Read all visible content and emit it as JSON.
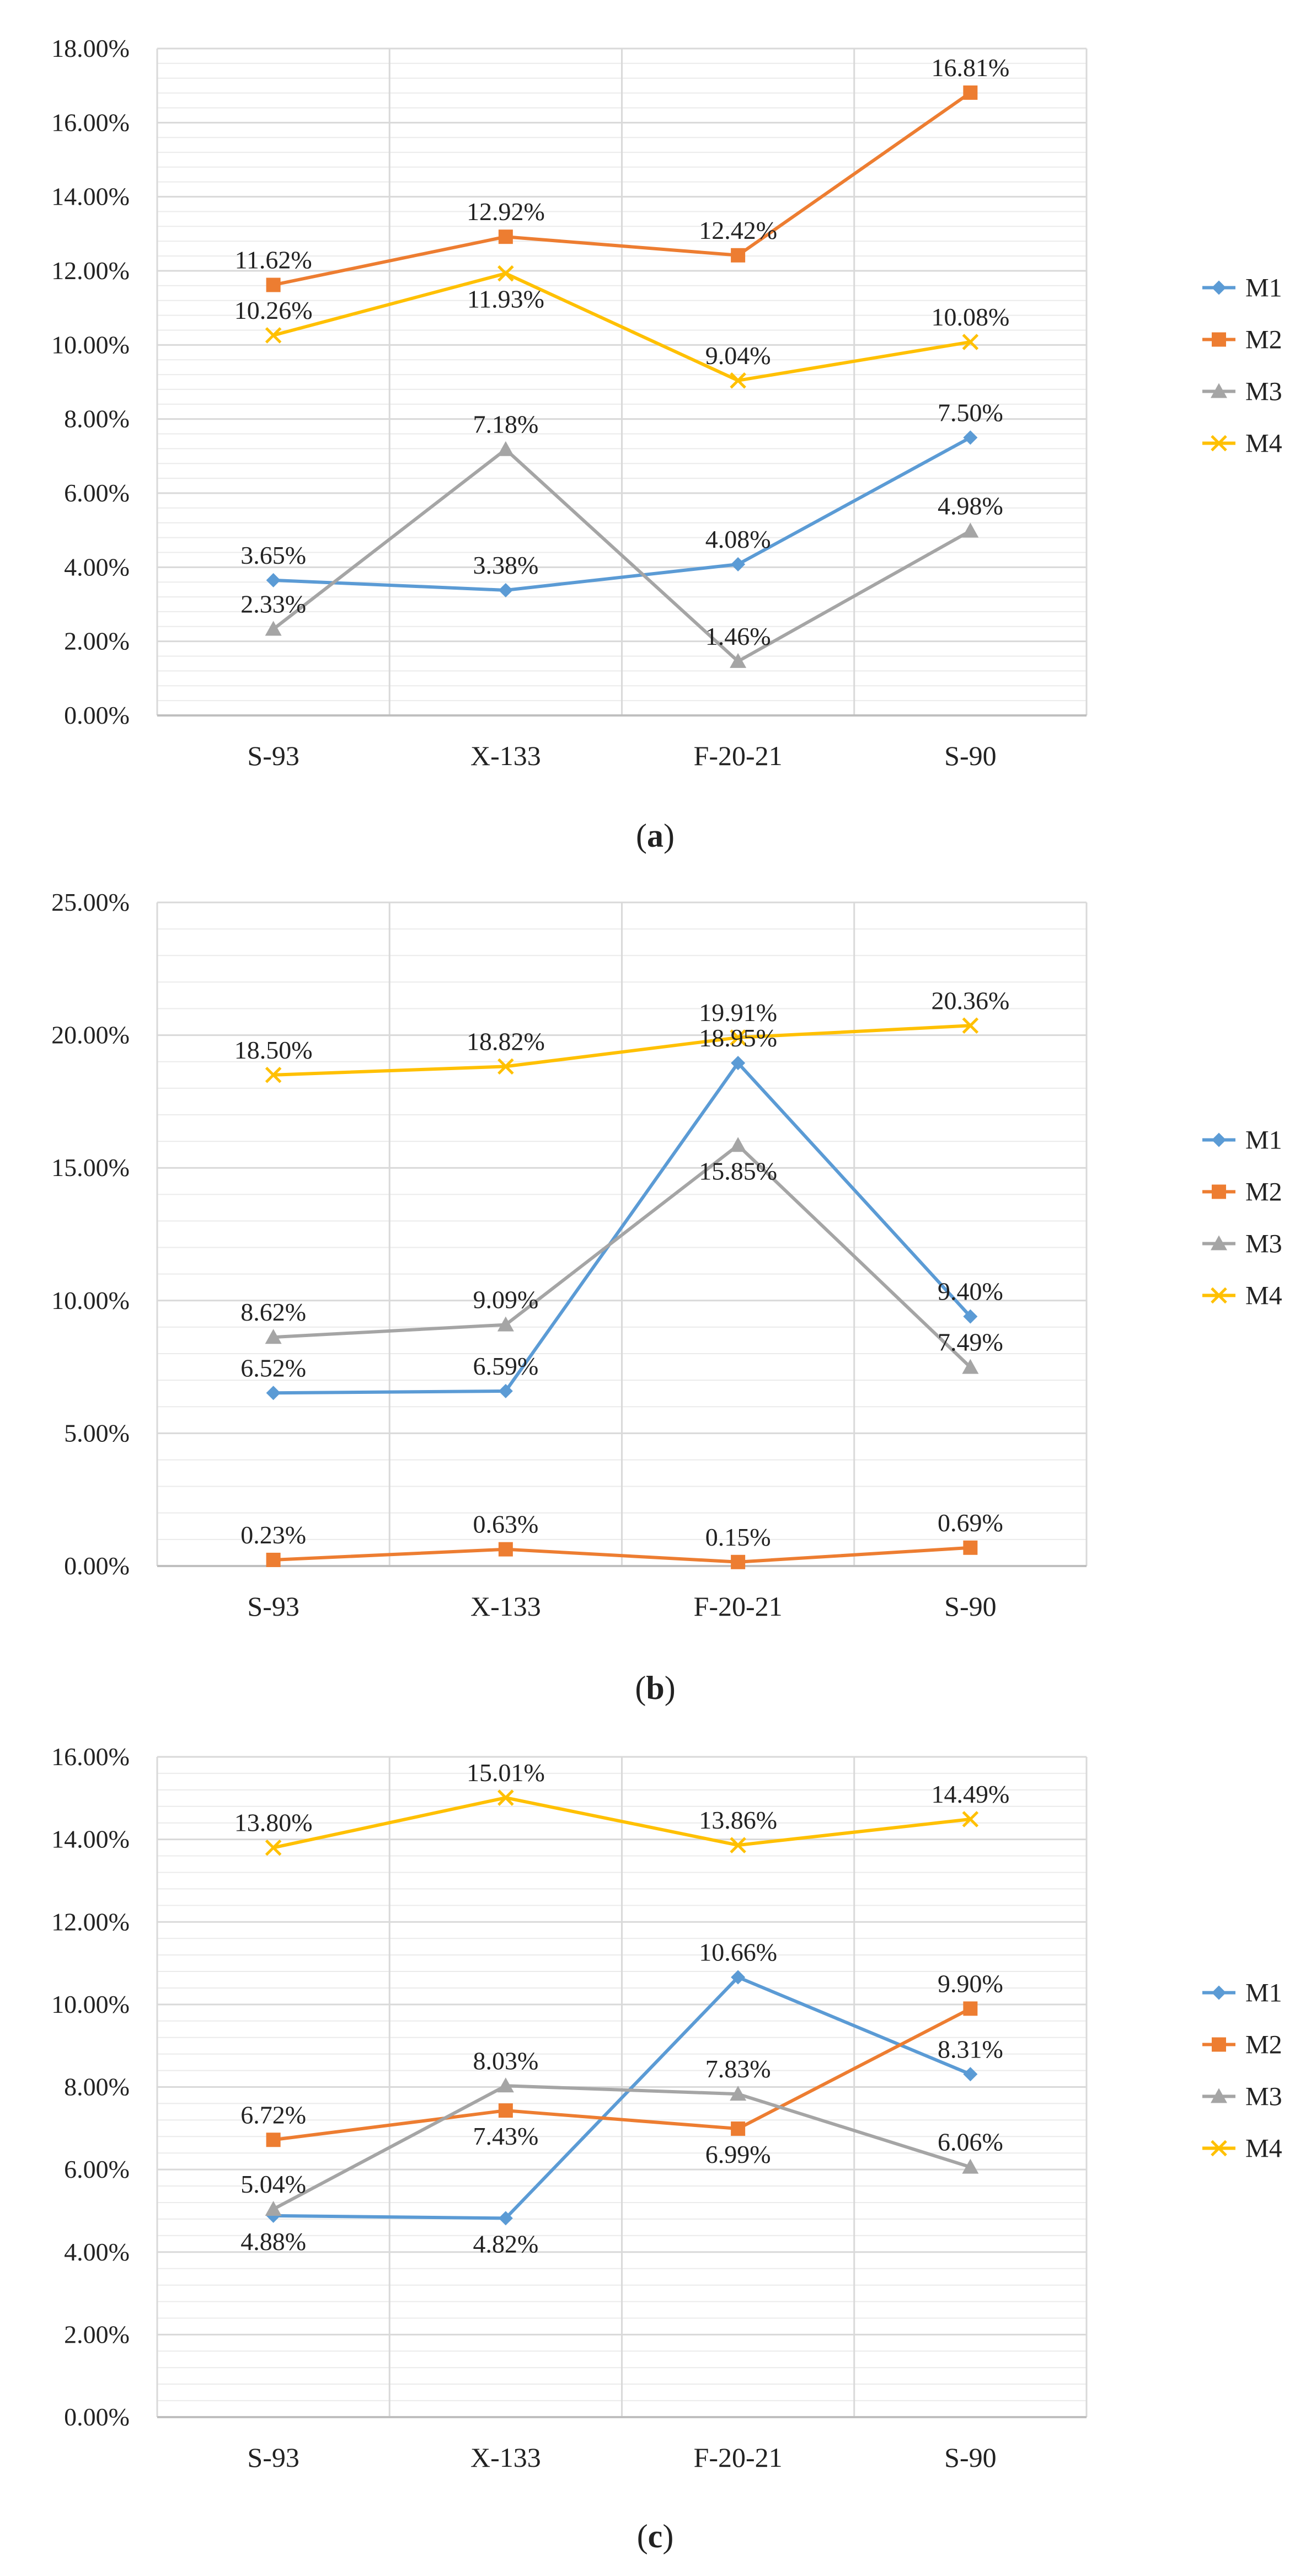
{
  "colors": {
    "M1": "#5B9BD5",
    "M2": "#ED7D31",
    "M3": "#A5A5A5",
    "M4": "#FFC000",
    "grid": "#d9d9d9",
    "axis": "#bfbfbf",
    "text": "#222222"
  },
  "chart_data": [
    {
      "type": "line",
      "panel_label": "a",
      "categories": [
        "S-93",
        "X-133",
        "F-20-21",
        "S-90"
      ],
      "ylim": [
        0,
        18
      ],
      "ytick_step": 2,
      "ytick_labels": [
        "0.00%",
        "2.00%",
        "4.00%",
        "6.00%",
        "8.00%",
        "10.00%",
        "12.00%",
        "14.00%",
        "16.00%",
        "18.00%"
      ],
      "legend_position": "right",
      "series": [
        {
          "name": "M1",
          "values": [
            3.65,
            3.38,
            4.08,
            7.5
          ],
          "labels": [
            "3.65%",
            "3.38%",
            "4.08%",
            "7.50%"
          ],
          "label_pos": [
            "above",
            "above",
            "above",
            "above"
          ]
        },
        {
          "name": "M2",
          "values": [
            11.62,
            12.92,
            12.42,
            16.81
          ],
          "labels": [
            "11.62%",
            "12.92%",
            "12.42%",
            "16.81%"
          ],
          "label_pos": [
            "above",
            "above",
            "above",
            "above"
          ]
        },
        {
          "name": "M3",
          "values": [
            2.33,
            7.18,
            1.46,
            4.98
          ],
          "labels": [
            "2.33%",
            "7.18%",
            "1.46%",
            "4.98%"
          ],
          "label_pos": [
            "above",
            "above",
            "above",
            "above"
          ]
        },
        {
          "name": "M4",
          "values": [
            10.26,
            11.93,
            9.04,
            10.08
          ],
          "labels": [
            "10.26%",
            "11.93%",
            "9.04%",
            "10.08%"
          ],
          "label_pos": [
            "above",
            "below",
            "above",
            "above"
          ]
        }
      ]
    },
    {
      "type": "line",
      "panel_label": "b",
      "categories": [
        "S-93",
        "X-133",
        "F-20-21",
        "S-90"
      ],
      "ylim": [
        0,
        25
      ],
      "ytick_step": 5,
      "ytick_labels": [
        "0.00%",
        "5.00%",
        "10.00%",
        "15.00%",
        "20.00%",
        "25.00%"
      ],
      "legend_position": "right",
      "series": [
        {
          "name": "M1",
          "values": [
            6.52,
            6.59,
            18.95,
            9.4
          ],
          "labels": [
            "6.52%",
            "6.59%",
            "18.95%",
            "9.40%"
          ],
          "label_pos": [
            "above",
            "above",
            "above",
            "above"
          ]
        },
        {
          "name": "M2",
          "values": [
            0.23,
            0.63,
            0.15,
            0.69
          ],
          "labels": [
            "0.23%",
            "0.63%",
            "0.15%",
            "0.69%"
          ],
          "label_pos": [
            "above",
            "above",
            "above",
            "above"
          ]
        },
        {
          "name": "M3",
          "values": [
            8.62,
            9.09,
            15.85,
            7.49
          ],
          "labels": [
            "8.62%",
            "9.09%",
            "15.85%",
            "7.49%"
          ],
          "label_pos": [
            "above",
            "above",
            "below",
            "above"
          ]
        },
        {
          "name": "M4",
          "values": [
            18.5,
            18.82,
            19.91,
            20.36
          ],
          "labels": [
            "18.50%",
            "18.82%",
            "19.91%",
            "20.36%"
          ],
          "label_pos": [
            "above",
            "above",
            "above",
            "above"
          ]
        }
      ]
    },
    {
      "type": "line",
      "panel_label": "c",
      "categories": [
        "S-93",
        "X-133",
        "F-20-21",
        "S-90"
      ],
      "ylim": [
        0,
        16
      ],
      "ytick_step": 2,
      "ytick_labels": [
        "0.00%",
        "2.00%",
        "4.00%",
        "6.00%",
        "8.00%",
        "10.00%",
        "12.00%",
        "14.00%",
        "16.00%"
      ],
      "legend_position": "right",
      "series": [
        {
          "name": "M1",
          "values": [
            4.88,
            4.82,
            10.66,
            8.31
          ],
          "labels": [
            "4.88%",
            "4.82%",
            "10.66%",
            "8.31%"
          ],
          "label_pos": [
            "below",
            "below",
            "above",
            "above"
          ]
        },
        {
          "name": "M2",
          "values": [
            6.72,
            7.43,
            6.99,
            9.9
          ],
          "labels": [
            "6.72%",
            "7.43%",
            "6.99%",
            "9.90%"
          ],
          "label_pos": [
            "above",
            "below",
            "below",
            "above"
          ]
        },
        {
          "name": "M3",
          "values": [
            5.04,
            8.03,
            7.83,
            6.06
          ],
          "labels": [
            "5.04%",
            "8.03%",
            "7.83%",
            "6.06%"
          ],
          "label_pos": [
            "above",
            "above",
            "above",
            "above"
          ]
        },
        {
          "name": "M4",
          "values": [
            13.8,
            15.01,
            13.86,
            14.49
          ],
          "labels": [
            "13.80%",
            "15.01%",
            "13.86%",
            "14.49%"
          ],
          "label_pos": [
            "above",
            "above",
            "above",
            "above"
          ]
        }
      ]
    }
  ]
}
